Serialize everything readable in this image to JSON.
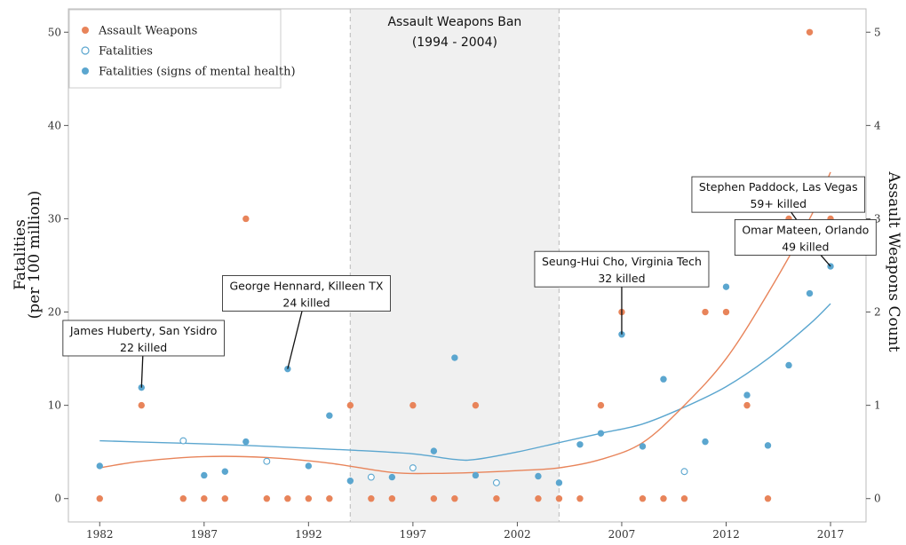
{
  "chart_data": {
    "type": "scatter",
    "xlim": [
      1980.5,
      2018.7
    ],
    "x_ticks": [
      1982,
      1987,
      1992,
      1997,
      2002,
      2007,
      2012,
      2017
    ],
    "y_left": {
      "label": [
        "Fatalities",
        "(per 100 million)"
      ],
      "lim": [
        -2.5,
        52.5
      ],
      "ticks": [
        0,
        10,
        20,
        30,
        40,
        50
      ]
    },
    "y_right": {
      "label": "Assault Weapons Count",
      "lim": [
        -0.25,
        5.25
      ],
      "ticks": [
        0,
        1,
        2,
        3,
        4,
        5
      ]
    },
    "grid": false,
    "legend": {
      "position": "top-left",
      "entries": [
        {
          "label": "Assault Weapons",
          "marker": "filled",
          "color": "#E8845A"
        },
        {
          "label": "Fatalities",
          "marker": "open",
          "color": "#5BA6CF"
        },
        {
          "label": "Fatalities (signs of mental health)",
          "marker": "filled",
          "color": "#5BA6CF"
        }
      ]
    },
    "ban_period": {
      "start": 1994,
      "end": 2004,
      "title": "Assault Weapons Ban",
      "subtitle": "(1994 - 2004)",
      "color": "#F0F0F0"
    },
    "series": [
      {
        "name": "Assault Weapons",
        "axis": "right",
        "color": "#E8845A",
        "marker": "filled",
        "points": [
          {
            "x": 1982,
            "y": 0
          },
          {
            "x": 1984,
            "y": 1
          },
          {
            "x": 1986,
            "y": 0
          },
          {
            "x": 1987,
            "y": 0
          },
          {
            "x": 1988,
            "y": 0
          },
          {
            "x": 1989,
            "y": 3
          },
          {
            "x": 1990,
            "y": 0
          },
          {
            "x": 1991,
            "y": 0
          },
          {
            "x": 1992,
            "y": 0
          },
          {
            "x": 1993,
            "y": 0
          },
          {
            "x": 1994,
            "y": 1
          },
          {
            "x": 1995,
            "y": 0
          },
          {
            "x": 1996,
            "y": 0
          },
          {
            "x": 1997,
            "y": 1
          },
          {
            "x": 1998,
            "y": 0
          },
          {
            "x": 1999,
            "y": 0
          },
          {
            "x": 2000,
            "y": 1
          },
          {
            "x": 2001,
            "y": 0
          },
          {
            "x": 2003,
            "y": 0
          },
          {
            "x": 2004,
            "y": 0
          },
          {
            "x": 2005,
            "y": 0
          },
          {
            "x": 2006,
            "y": 1
          },
          {
            "x": 2007,
            "y": 2
          },
          {
            "x": 2008,
            "y": 0
          },
          {
            "x": 2009,
            "y": 0
          },
          {
            "x": 2010,
            "y": 0
          },
          {
            "x": 2011,
            "y": 2
          },
          {
            "x": 2012,
            "y": 2
          },
          {
            "x": 2013,
            "y": 1
          },
          {
            "x": 2014,
            "y": 0
          },
          {
            "x": 2015,
            "y": 3
          },
          {
            "x": 2016,
            "y": 5
          },
          {
            "x": 2017,
            "y": 3
          }
        ]
      },
      {
        "name": "Fatalities",
        "axis": "left",
        "color": "#5BA6CF",
        "marker": "open",
        "points": [
          {
            "x": 1986,
            "y": 6.2
          },
          {
            "x": 1990,
            "y": 4.0
          },
          {
            "x": 1995,
            "y": 2.3
          },
          {
            "x": 1997,
            "y": 3.3
          },
          {
            "x": 2001,
            "y": 1.7
          },
          {
            "x": 2010,
            "y": 2.9
          }
        ]
      },
      {
        "name": "Fatalities (signs of mental health)",
        "axis": "left",
        "color": "#5BA6CF",
        "marker": "filled",
        "points": [
          {
            "x": 1982,
            "y": 3.5
          },
          {
            "x": 1984,
            "y": 11.9
          },
          {
            "x": 1987,
            "y": 2.5
          },
          {
            "x": 1988,
            "y": 2.9
          },
          {
            "x": 1989,
            "y": 6.1
          },
          {
            "x": 1991,
            "y": 13.9
          },
          {
            "x": 1992,
            "y": 3.5
          },
          {
            "x": 1993,
            "y": 8.9
          },
          {
            "x": 1994,
            "y": 1.9
          },
          {
            "x": 1996,
            "y": 2.3
          },
          {
            "x": 1998,
            "y": 5.1
          },
          {
            "x": 1999,
            "y": 15.1
          },
          {
            "x": 2000,
            "y": 2.5
          },
          {
            "x": 2003,
            "y": 2.4
          },
          {
            "x": 2004,
            "y": 1.7
          },
          {
            "x": 2005,
            "y": 5.8
          },
          {
            "x": 2006,
            "y": 7.0
          },
          {
            "x": 2007,
            "y": 17.6
          },
          {
            "x": 2008,
            "y": 5.6
          },
          {
            "x": 2009,
            "y": 12.8
          },
          {
            "x": 2011,
            "y": 6.1
          },
          {
            "x": 2012,
            "y": 22.7
          },
          {
            "x": 2013,
            "y": 11.1
          },
          {
            "x": 2014,
            "y": 5.7
          },
          {
            "x": 2015,
            "y": 14.3
          },
          {
            "x": 2016,
            "y": 22.0
          },
          {
            "x": 2017,
            "y": 24.9
          }
        ]
      }
    ],
    "trend_lines": [
      {
        "name": "Fatalities trend",
        "axis": "left",
        "color": "#5BA6CF",
        "points": [
          {
            "x": 1982,
            "y": 6.2
          },
          {
            "x": 1985,
            "y": 6.0
          },
          {
            "x": 1988,
            "y": 5.8
          },
          {
            "x": 1991,
            "y": 5.5
          },
          {
            "x": 1994,
            "y": 5.2
          },
          {
            "x": 1997,
            "y": 4.8
          },
          {
            "x": 1999,
            "y": 4.2
          },
          {
            "x": 2000,
            "y": 4.2
          },
          {
            "x": 2002,
            "y": 5.0
          },
          {
            "x": 2004,
            "y": 6.0
          },
          {
            "x": 2006,
            "y": 7.0
          },
          {
            "x": 2008,
            "y": 8.0
          },
          {
            "x": 2010,
            "y": 9.8
          },
          {
            "x": 2012,
            "y": 12.0
          },
          {
            "x": 2014,
            "y": 15.0
          },
          {
            "x": 2016,
            "y": 18.7
          },
          {
            "x": 2017,
            "y": 20.9
          }
        ]
      },
      {
        "name": "Assault Weapons trend",
        "axis": "right",
        "color": "#E8845A",
        "points": [
          {
            "x": 1982,
            "y": 0.33
          },
          {
            "x": 1984,
            "y": 0.4
          },
          {
            "x": 1987,
            "y": 0.45
          },
          {
            "x": 1990,
            "y": 0.44
          },
          {
            "x": 1993,
            "y": 0.38
          },
          {
            "x": 1996,
            "y": 0.28
          },
          {
            "x": 1998,
            "y": 0.27
          },
          {
            "x": 2000,
            "y": 0.28
          },
          {
            "x": 2002,
            "y": 0.3
          },
          {
            "x": 2004,
            "y": 0.33
          },
          {
            "x": 2006,
            "y": 0.42
          },
          {
            "x": 2008,
            "y": 0.6
          },
          {
            "x": 2010,
            "y": 1.0
          },
          {
            "x": 2012,
            "y": 1.5
          },
          {
            "x": 2014,
            "y": 2.2
          },
          {
            "x": 2016,
            "y": 3.0
          },
          {
            "x": 2017,
            "y": 3.5
          }
        ]
      }
    ],
    "annotations": [
      {
        "line1": "James Huberty, San Ysidro",
        "line2": "22 killed",
        "point": {
          "x": 1984,
          "y": 11.9
        },
        "label_at": {
          "x": 1984.1,
          "y": 17.2
        }
      },
      {
        "line1": "George Hennard, Killeen TX",
        "line2": "24 killed",
        "point": {
          "x": 1991,
          "y": 13.9
        },
        "label_at": {
          "x": 1991.9,
          "y": 22.0
        }
      },
      {
        "line1": "Seung-Hui Cho, Virginia Tech",
        "line2": "32 killed",
        "point": {
          "x": 2007,
          "y": 17.6
        },
        "label_at": {
          "x": 2007,
          "y": 24.6
        }
      },
      {
        "line1": "Stephen Paddock, Las Vegas",
        "line2": "59+ killed",
        "point": {
          "x": 2015.5,
          "y": 29.5
        },
        "label_at": {
          "x": 2014.5,
          "y": 32.6
        }
      },
      {
        "line1": "Omar Mateen, Orlando",
        "line2": "49 killed",
        "point": {
          "x": 2017,
          "y": 24.9
        },
        "label_at": {
          "x": 2015.8,
          "y": 28.0
        }
      }
    ]
  }
}
